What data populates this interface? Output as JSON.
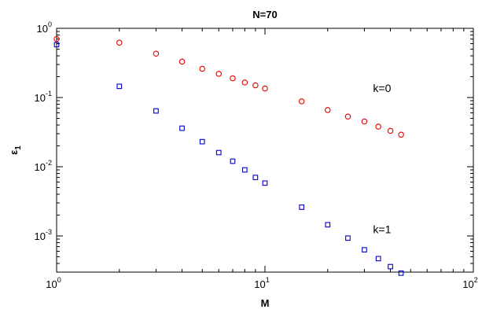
{
  "chart_data": {
    "type": "scatter",
    "title": "N=70",
    "xlabel": "M",
    "ylabel": "ε",
    "ylabel_subscript": "1",
    "xscale": "log",
    "yscale": "log",
    "xlim": [
      1,
      100
    ],
    "ylim": [
      0.0003,
      1
    ],
    "x_ticks": [
      {
        "base": "10",
        "exp": "0",
        "value": 1
      },
      {
        "base": "10",
        "exp": "1",
        "value": 10
      },
      {
        "base": "10",
        "exp": "2",
        "value": 100
      }
    ],
    "y_ticks": [
      {
        "base": "10",
        "exp": "0",
        "value": 1
      },
      {
        "base": "10",
        "exp": "-1",
        "value": 0.1
      },
      {
        "base": "10",
        "exp": "-2",
        "value": 0.01
      },
      {
        "base": "10",
        "exp": "-3",
        "value": 0.001
      }
    ],
    "grid": false,
    "series": [
      {
        "marker": "circle",
        "color": "#e00000",
        "points": [
          [
            1,
            0.7
          ],
          [
            2,
            0.62
          ],
          [
            3,
            0.43
          ],
          [
            4,
            0.33
          ],
          [
            5,
            0.26
          ],
          [
            6,
            0.22
          ],
          [
            7,
            0.19
          ],
          [
            8,
            0.165
          ],
          [
            9,
            0.15
          ],
          [
            10,
            0.135
          ],
          [
            15,
            0.088
          ],
          [
            20,
            0.066
          ],
          [
            25,
            0.053
          ],
          [
            30,
            0.045
          ],
          [
            35,
            0.038
          ],
          [
            40,
            0.033
          ],
          [
            45,
            0.029
          ]
        ]
      },
      {
        "marker": "square",
        "color": "#0000cc",
        "points": [
          [
            1,
            0.58
          ],
          [
            2,
            0.145
          ],
          [
            3,
            0.064
          ],
          [
            4,
            0.036
          ],
          [
            5,
            0.023
          ],
          [
            6,
            0.016
          ],
          [
            7,
            0.012
          ],
          [
            8,
            0.009
          ],
          [
            9,
            0.007
          ],
          [
            10,
            0.0058
          ],
          [
            15,
            0.0026
          ],
          [
            20,
            0.00145
          ],
          [
            25,
            0.00093
          ],
          [
            30,
            0.00063
          ],
          [
            35,
            0.00047
          ],
          [
            40,
            0.00036
          ],
          [
            45,
            0.00029
          ]
        ]
      }
    ],
    "annotations": [
      {
        "text": "k=0",
        "x": 33,
        "y": 0.12
      },
      {
        "text": "k=1",
        "x": 33,
        "y": 0.0011
      }
    ]
  }
}
